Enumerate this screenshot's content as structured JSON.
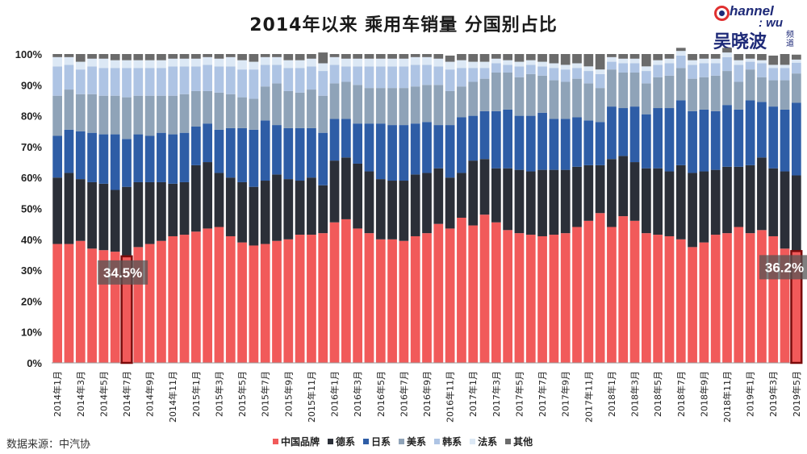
{
  "chart_data": {
    "type": "bar",
    "stacked": true,
    "title": "2014年以来 乘用车销量 分国别占比",
    "ylim": [
      0,
      100
    ],
    "y_ticks": [
      "0%",
      "10%",
      "20%",
      "30%",
      "40%",
      "50%",
      "60%",
      "70%",
      "80%",
      "90%",
      "100%"
    ],
    "x_tick_labels": [
      "2014年1月",
      "2014年3月",
      "2014年5月",
      "2014年7月",
      "2014年9月",
      "2014年11月",
      "2015年1月",
      "2015年3月",
      "2015年5月",
      "2015年7月",
      "2015年9月",
      "2015年11月",
      "2016年1月",
      "2016年3月",
      "2016年5月",
      "2016年7月",
      "2016年9月",
      "2016年11月",
      "2017年1月",
      "2017年3月",
      "2017年5月",
      "2017年7月",
      "2017年9月",
      "2017年11月",
      "2018年1月",
      "2018年3月",
      "2018年5月",
      "2018年7月",
      "2018年9月",
      "2018年11月",
      "2019年1月",
      "2019年3月",
      "2019年5月"
    ],
    "categories": [
      "2014-01",
      "2014-02",
      "2014-03",
      "2014-04",
      "2014-05",
      "2014-06",
      "2014-07",
      "2014-08",
      "2014-09",
      "2014-10",
      "2014-11",
      "2014-12",
      "2015-01",
      "2015-02",
      "2015-03",
      "2015-04",
      "2015-05",
      "2015-06",
      "2015-07",
      "2015-08",
      "2015-09",
      "2015-10",
      "2015-11",
      "2015-12",
      "2016-01",
      "2016-02",
      "2016-03",
      "2016-04",
      "2016-05",
      "2016-06",
      "2016-07",
      "2016-08",
      "2016-09",
      "2016-10",
      "2016-11",
      "2016-12",
      "2017-01",
      "2017-02",
      "2017-03",
      "2017-04",
      "2017-05",
      "2017-06",
      "2017-07",
      "2017-08",
      "2017-09",
      "2017-10",
      "2017-11",
      "2017-12",
      "2018-01",
      "2018-02",
      "2018-03",
      "2018-04",
      "2018-05",
      "2018-06",
      "2018-07",
      "2018-08",
      "2018-09",
      "2018-10",
      "2018-11",
      "2018-12",
      "2019-01",
      "2019-02",
      "2019-03",
      "2019-04",
      "2019-05"
    ],
    "series": [
      {
        "name": "中国品牌",
        "color": "#f15a5a",
        "values": [
          38.5,
          38.5,
          39.5,
          37,
          36.5,
          36,
          34.5,
          37.5,
          38.5,
          39.5,
          41,
          41.5,
          42.5,
          43.5,
          44,
          41,
          39,
          38,
          38.5,
          39.5,
          40,
          41.5,
          41.5,
          42,
          45.5,
          46.5,
          43.5,
          42,
          40,
          40,
          39.5,
          41,
          42,
          45,
          43.5,
          47,
          44.5,
          48,
          45.5,
          43,
          42,
          41.5,
          41,
          41.5,
          42,
          44,
          46,
          48.5,
          44,
          47.5,
          46,
          42,
          41.5,
          41,
          40,
          37.5,
          39,
          41.5,
          42,
          44,
          42,
          43,
          41,
          37,
          36.2
        ]
      },
      {
        "name": "德系",
        "color": "#2b2f38",
        "values": [
          21.5,
          23,
          20,
          21.5,
          21.5,
          20,
          22.5,
          21,
          20,
          19,
          17,
          17,
          21.5,
          21.5,
          17.5,
          19,
          19.5,
          19,
          20.5,
          21.5,
          19.5,
          17.5,
          18.5,
          15.5,
          20,
          20,
          21,
          20,
          19.5,
          19,
          19.5,
          20,
          19.5,
          18,
          16.5,
          14.5,
          21,
          18,
          17.5,
          20,
          20.5,
          20.5,
          21.5,
          21,
          20.5,
          19.5,
          18,
          15.5,
          22,
          19.5,
          19,
          21,
          21.5,
          21,
          24,
          24,
          23,
          21,
          21.5,
          19.5,
          22,
          23.5,
          22,
          25,
          24.5
        ]
      },
      {
        "name": "日系",
        "color": "#2e5da6",
        "values": [
          13.5,
          14,
          15.5,
          16,
          16,
          18,
          15.5,
          15.5,
          15,
          16,
          16,
          16,
          12.5,
          12.5,
          14,
          16,
          17.5,
          18.5,
          19.5,
          16,
          16.5,
          17,
          16,
          17,
          13.5,
          12.5,
          13,
          15.5,
          18,
          18,
          18,
          16.5,
          16.5,
          14,
          17,
          18,
          14.5,
          15.5,
          18.5,
          19,
          17.5,
          18,
          18.5,
          16.5,
          16.5,
          16,
          14.5,
          14,
          17,
          15.5,
          18,
          17.5,
          19.5,
          20.5,
          21,
          20,
          20,
          19,
          20,
          18.5,
          21,
          18,
          20,
          20,
          23.5
        ]
      },
      {
        "name": "美系",
        "color": "#8fa3b8",
        "values": [
          13,
          13,
          12,
          12.5,
          12.5,
          12.5,
          13.5,
          12.5,
          13,
          12,
          12.5,
          12.5,
          11.5,
          10.5,
          12,
          11,
          10,
          10,
          11,
          13.5,
          12,
          11.5,
          12.5,
          12,
          11.5,
          12,
          12.5,
          11.5,
          11.5,
          12,
          12,
          12,
          12,
          13,
          11,
          10,
          11,
          10.5,
          12.5,
          12,
          12.5,
          13.5,
          12,
          12.5,
          12,
          12.5,
          12,
          11,
          12,
          11.5,
          11,
          10,
          10,
          10.5,
          10.5,
          10.5,
          10.5,
          11.5,
          11,
          9,
          10,
          8,
          8.5,
          9.5,
          9.5
        ]
      },
      {
        "name": "韩系",
        "color": "#aec4e4",
        "values": [
          9.5,
          8,
          8,
          9,
          9,
          9,
          9.5,
          9,
          9,
          9,
          9.5,
          9,
          8,
          8.5,
          8.5,
          9,
          9,
          9.5,
          7,
          6,
          7.5,
          8,
          7.5,
          8,
          6,
          5,
          6,
          7,
          7,
          7,
          7,
          7,
          6.5,
          6,
          7,
          6,
          4.5,
          3.5,
          3,
          2.5,
          3.5,
          3,
          3,
          4,
          4,
          3.5,
          4,
          4.5,
          2.5,
          3,
          3,
          4,
          4,
          4,
          4,
          4.5,
          4.5,
          4,
          4.5,
          5.5,
          2.5,
          4.5,
          4,
          4,
          3.5
        ]
      },
      {
        "name": "法系",
        "color": "#dce8f5",
        "values": [
          3,
          2.5,
          2.5,
          2.5,
          3,
          2.5,
          2.5,
          2.5,
          2.5,
          2.5,
          2.5,
          2.5,
          2.5,
          2.5,
          2.5,
          3,
          3,
          2.5,
          2.5,
          2.5,
          2.5,
          2.5,
          2.5,
          2.5,
          2.5,
          2.5,
          2.5,
          2.5,
          2.5,
          2.5,
          2.5,
          2.5,
          2.5,
          2.5,
          2.5,
          2.5,
          2,
          2,
          1.5,
          1.5,
          1.5,
          1.5,
          1.5,
          1.5,
          1.5,
          1.5,
          1.5,
          1.5,
          1.5,
          1.5,
          1.5,
          1.5,
          1.5,
          1.5,
          1.5,
          1.5,
          1.5,
          1.5,
          1.5,
          1.5,
          1,
          1,
          1,
          1,
          1
        ]
      },
      {
        "name": "其他",
        "color": "#6b6b6b",
        "values": [
          1,
          1,
          2.5,
          1.5,
          1.5,
          2,
          2,
          2,
          2,
          2,
          1.5,
          1.5,
          1.5,
          1,
          1.5,
          1,
          2,
          2.5,
          1,
          1,
          2,
          2,
          1.5,
          3.5,
          1,
          1.5,
          1.5,
          1.5,
          1.5,
          1.5,
          1.5,
          1,
          1,
          1.5,
          2,
          2,
          2.5,
          2.5,
          1.5,
          2,
          2.5,
          2,
          2.5,
          3,
          3.5,
          3,
          4,
          5,
          1,
          1.5,
          1.5,
          4,
          2,
          1.5,
          1,
          2,
          1.5,
          1.5,
          1.5,
          2,
          1.5,
          2,
          3,
          3.5,
          1.6
        ]
      }
    ],
    "highlights": [
      {
        "category": "2014-07",
        "label": "34.5%"
      },
      {
        "category": "2019-05",
        "label": "36.2%"
      }
    ],
    "legend_position": "bottom",
    "grid": false
  },
  "source_text": "数据来源：中汽协",
  "logo": {
    "line1": "hannel",
    "line2": ": wu",
    "line3": "吴晓波",
    "line4": "频道"
  }
}
